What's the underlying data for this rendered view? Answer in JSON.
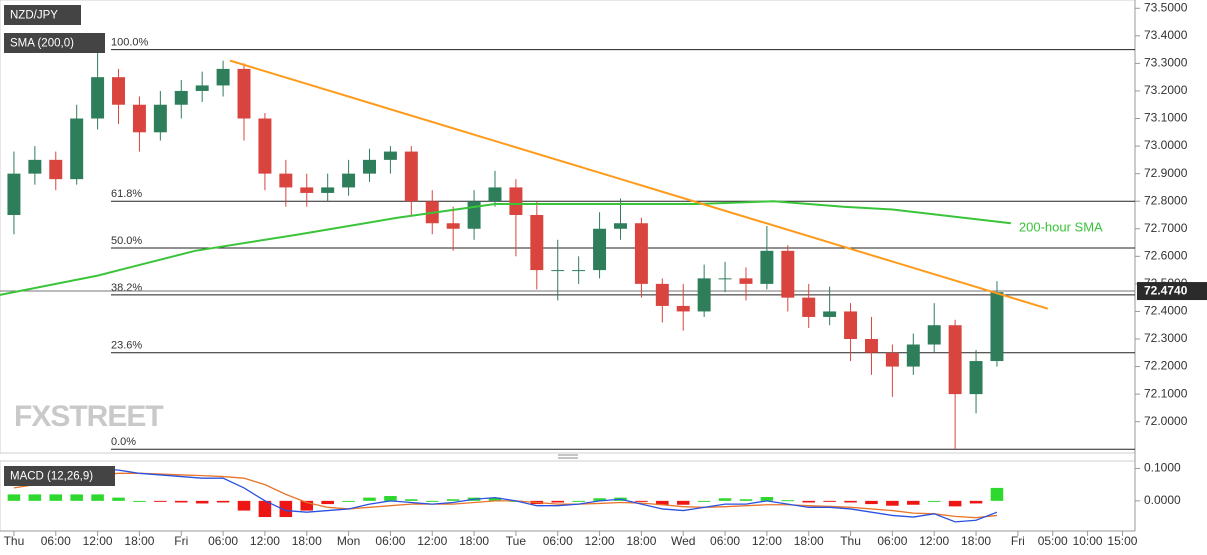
{
  "chart_data": [
    {
      "type": "candlestick",
      "title": "NZD/JPY",
      "subtitle": "SMA (200,0)",
      "x": [
        0,
        3,
        6,
        9,
        12,
        15,
        18,
        21,
        24,
        27,
        30,
        33,
        36,
        39,
        42,
        45,
        48,
        51,
        54,
        57,
        60,
        63,
        66,
        69,
        72,
        75,
        78,
        81,
        84,
        87,
        90,
        93,
        96,
        99,
        102,
        105,
        108,
        111,
        114,
        117,
        120,
        123,
        126,
        129,
        132,
        135,
        138,
        141
      ],
      "open": [
        72.75,
        72.9,
        72.95,
        72.88,
        73.1,
        73.25,
        73.15,
        73.05,
        73.15,
        73.2,
        73.22,
        73.28,
        73.1,
        72.9,
        72.85,
        72.83,
        72.85,
        72.9,
        72.95,
        72.98,
        72.8,
        72.72,
        72.7,
        72.8,
        72.85,
        72.75,
        72.55,
        72.55,
        72.55,
        72.7,
        72.72,
        72.5,
        72.42,
        72.4,
        72.52,
        72.52,
        72.5,
        72.62,
        72.45,
        72.38,
        72.4,
        72.3,
        72.25,
        72.2,
        72.28,
        72.35,
        72.1,
        72.22
      ],
      "high": [
        72.98,
        73.0,
        72.98,
        73.15,
        73.35,
        73.28,
        73.18,
        73.2,
        73.24,
        73.27,
        73.31,
        73.3,
        73.12,
        72.95,
        72.9,
        72.9,
        72.95,
        72.99,
        73.0,
        73.0,
        72.84,
        72.78,
        72.84,
        72.91,
        72.88,
        72.8,
        72.66,
        72.6,
        72.76,
        72.81,
        72.74,
        72.52,
        72.5,
        72.57,
        72.58,
        72.56,
        72.71,
        72.64,
        72.5,
        72.49,
        72.43,
        72.38,
        72.28,
        72.32,
        72.43,
        72.37,
        72.26,
        72.51
      ],
      "low": [
        72.68,
        72.86,
        72.84,
        72.86,
        73.06,
        73.08,
        72.98,
        73.02,
        73.1,
        73.16,
        73.18,
        73.02,
        72.84,
        72.78,
        72.78,
        72.8,
        72.82,
        72.87,
        72.9,
        72.75,
        72.68,
        72.62,
        72.66,
        72.78,
        72.6,
        72.48,
        72.44,
        72.5,
        72.52,
        72.66,
        72.45,
        72.36,
        72.33,
        72.38,
        72.47,
        72.44,
        72.48,
        72.4,
        72.34,
        72.35,
        72.22,
        72.17,
        72.09,
        72.17,
        72.25,
        71.9,
        72.03,
        72.2
      ],
      "close": [
        72.9,
        72.95,
        72.88,
        73.1,
        73.25,
        73.15,
        73.05,
        73.15,
        73.2,
        73.22,
        73.28,
        73.1,
        72.9,
        72.85,
        72.83,
        72.85,
        72.9,
        72.95,
        72.98,
        72.8,
        72.72,
        72.7,
        72.8,
        72.85,
        72.75,
        72.55,
        72.55,
        72.55,
        72.7,
        72.72,
        72.5,
        72.42,
        72.4,
        72.52,
        72.52,
        72.5,
        72.62,
        72.45,
        72.38,
        72.4,
        72.3,
        72.25,
        72.2,
        72.28,
        72.35,
        72.1,
        72.22,
        72.47
      ],
      "up_color": "#2e7d5b",
      "down_color": "#d9443f",
      "lines": [
        {
          "name": "200-hour SMA",
          "color": "#3ac43a",
          "x": [
            -2,
            12,
            26,
            41,
            55,
            69,
            84,
            98,
            109,
            119,
            126,
            143
          ],
          "values": [
            72.46,
            72.53,
            72.62,
            72.68,
            72.74,
            72.79,
            72.79,
            72.79,
            72.8,
            72.78,
            72.77,
            72.72
          ]
        },
        {
          "color": "#ff9a1a",
          "x": [
            31,
            148.3
          ],
          "values": [
            73.31,
            72.41
          ]
        }
      ],
      "levels": [
        {
          "name": "100.0%",
          "value": 73.35
        },
        {
          "name": "61.8%",
          "value": 72.8
        },
        {
          "name": "50.0%",
          "value": 72.63
        },
        {
          "name": "38.2%",
          "value": 72.46
        },
        {
          "name": "23.6%",
          "value": 72.25
        },
        {
          "name": "0.0%",
          "value": 71.9
        }
      ],
      "last_price": {
        "value": 72.474,
        "label": "72.4740"
      },
      "watermark": "FXSTREET",
      "xlim": [
        -2,
        160.8
      ],
      "ylim": [
        71.89,
        73.53
      ],
      "yticks": [
        {
          "value": 73.5,
          "label": "73.5000"
        },
        {
          "value": 73.4,
          "label": "73.4000"
        },
        {
          "value": 73.3,
          "label": "73.3000"
        },
        {
          "value": 73.2,
          "label": "73.2000"
        },
        {
          "value": 73.1,
          "label": "73.1000"
        },
        {
          "value": 73.0,
          "label": "73.0000"
        },
        {
          "value": 72.9,
          "label": "72.9000"
        },
        {
          "value": 72.8,
          "label": "72.8000"
        },
        {
          "value": 72.7,
          "label": "72.7000"
        },
        {
          "value": 72.6,
          "label": "72.6000"
        },
        {
          "value": 72.5,
          "label": "72.5000"
        },
        {
          "value": 72.4,
          "label": "72.4000"
        },
        {
          "value": 72.3,
          "label": "72.3000"
        },
        {
          "value": 72.2,
          "label": "72.2000"
        },
        {
          "value": 72.1,
          "label": "72.1000"
        },
        {
          "value": 72.0,
          "label": "72.0000"
        }
      ]
    },
    {
      "type": "macd",
      "title": "MACD (12,26,9)",
      "x": [
        0,
        3,
        6,
        9,
        12,
        15,
        18,
        21,
        24,
        27,
        30,
        33,
        36,
        39,
        42,
        45,
        48,
        51,
        54,
        57,
        60,
        63,
        66,
        69,
        72,
        75,
        78,
        81,
        84,
        87,
        90,
        93,
        96,
        99,
        102,
        105,
        108,
        111,
        114,
        117,
        120,
        123,
        126,
        129,
        132,
        135,
        138,
        141
      ],
      "histogram": {
        "up_color": "#2fd82f",
        "down_color": "#ee1515",
        "values": [
          0.02,
          0.02,
          0.02,
          0.02,
          0.02,
          0.01,
          0.0,
          -0.003,
          -0.005,
          -0.008,
          -0.005,
          -0.03,
          -0.05,
          -0.05,
          -0.03,
          -0.01,
          0.0,
          0.01,
          0.015,
          0.005,
          0.0,
          0.005,
          0.01,
          0.01,
          0.0,
          -0.01,
          -0.005,
          0.0,
          0.008,
          0.01,
          -0.003,
          -0.013,
          -0.012,
          0.0,
          0.008,
          0.005,
          0.012,
          0.002,
          -0.005,
          -0.003,
          -0.005,
          -0.01,
          -0.015,
          -0.012,
          0.0,
          -0.017,
          -0.008,
          0.04
        ]
      },
      "macd_line": {
        "color": "#2a52e0",
        "values": [
          0.06,
          0.07,
          0.08,
          0.09,
          0.1,
          0.095,
          0.085,
          0.08,
          0.075,
          0.07,
          0.07,
          0.04,
          0.0,
          -0.03,
          -0.035,
          -0.03,
          -0.025,
          -0.01,
          0.0,
          -0.005,
          -0.01,
          -0.005,
          0.005,
          0.01,
          0.0,
          -0.015,
          -0.015,
          -0.01,
          0.0,
          0.005,
          -0.01,
          -0.025,
          -0.03,
          -0.02,
          -0.01,
          -0.01,
          0.0,
          -0.01,
          -0.02,
          -0.02,
          -0.025,
          -0.035,
          -0.045,
          -0.05,
          -0.04,
          -0.065,
          -0.06,
          -0.035
        ]
      },
      "signal_line": {
        "color": "#e8752a",
        "values": [
          0.04,
          0.05,
          0.06,
          0.07,
          0.08,
          0.085,
          0.085,
          0.083,
          0.08,
          0.078,
          0.075,
          0.07,
          0.05,
          0.02,
          -0.005,
          -0.02,
          -0.025,
          -0.02,
          -0.015,
          -0.01,
          -0.01,
          -0.01,
          -0.005,
          0.0,
          0.0,
          -0.005,
          -0.01,
          -0.01,
          -0.008,
          -0.005,
          -0.007,
          -0.012,
          -0.018,
          -0.02,
          -0.018,
          -0.015,
          -0.012,
          -0.012,
          -0.015,
          -0.017,
          -0.02,
          -0.025,
          -0.03,
          -0.038,
          -0.04,
          -0.048,
          -0.052,
          -0.045
        ]
      },
      "xlim": [
        -2,
        160.8
      ],
      "ylim": [
        -0.09,
        0.12
      ],
      "yticks": [
        {
          "value": 0.1,
          "label": "0.1000"
        },
        {
          "value": 0.0,
          "label": "0.0000"
        }
      ],
      "xticks": [
        {
          "value": 0,
          "label": "Thu"
        },
        {
          "value": 6,
          "label": "06:00"
        },
        {
          "value": 12,
          "label": "12:00"
        },
        {
          "value": 18,
          "label": "18:00"
        },
        {
          "value": 24,
          "label": "Fri"
        },
        {
          "value": 30,
          "label": "06:00"
        },
        {
          "value": 36,
          "label": "12:00"
        },
        {
          "value": 42,
          "label": "18:00"
        },
        {
          "value": 48,
          "label": "Mon"
        },
        {
          "value": 54,
          "label": "06:00"
        },
        {
          "value": 60,
          "label": "12:00"
        },
        {
          "value": 66,
          "label": "18:00"
        },
        {
          "value": 72,
          "label": "Tue"
        },
        {
          "value": 78,
          "label": "06:00"
        },
        {
          "value": 84,
          "label": "12:00"
        },
        {
          "value": 90,
          "label": "18:00"
        },
        {
          "value": 96,
          "label": "Wed"
        },
        {
          "value": 102,
          "label": "06:00"
        },
        {
          "value": 108,
          "label": "12:00"
        },
        {
          "value": 114,
          "label": "18:00"
        },
        {
          "value": 120,
          "label": "Thu"
        },
        {
          "value": 126,
          "label": "06:00"
        },
        {
          "value": 132,
          "label": "12:00"
        },
        {
          "value": 138,
          "label": "18:00"
        },
        {
          "value": 144,
          "label": "Fri"
        },
        {
          "value": 149,
          "label": "05:00"
        },
        {
          "value": 154,
          "label": "10:00"
        },
        {
          "value": 159,
          "label": "15:00"
        }
      ]
    }
  ]
}
